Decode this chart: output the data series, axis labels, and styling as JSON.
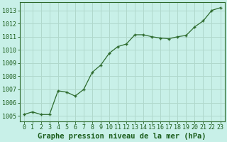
{
  "x": [
    0,
    1,
    2,
    3,
    4,
    5,
    6,
    7,
    8,
    9,
    10,
    11,
    12,
    13,
    14,
    15,
    16,
    17,
    18,
    19,
    20,
    21,
    22,
    23
  ],
  "y": [
    1005.1,
    1005.3,
    1005.1,
    1005.1,
    1006.9,
    1006.8,
    1006.5,
    1007.0,
    1008.3,
    1008.85,
    1009.75,
    1010.25,
    1010.45,
    1011.15,
    1011.15,
    1011.0,
    1010.9,
    1010.85,
    1011.0,
    1011.1,
    1011.75,
    1012.2,
    1013.0,
    1013.2
  ],
  "line_color": "#2d6a2d",
  "marker": "P",
  "marker_size": 2.5,
  "line_width": 0.9,
  "background_color": "#c8f0e8",
  "grid_color": "#b0d8cc",
  "xlabel": "Graphe pression niveau de la mer (hPa)",
  "xlabel_fontsize": 7.5,
  "xlabel_color": "#1a5c1a",
  "xlabel_bold": true,
  "ylabel_ticks": [
    1005,
    1006,
    1007,
    1008,
    1009,
    1010,
    1011,
    1012,
    1013
  ],
  "ylim": [
    1004.6,
    1013.6
  ],
  "xlim": [
    -0.5,
    23.5
  ],
  "tick_fontsize": 6.0,
  "tick_color": "#1a5c1a",
  "axis_color": "#2d6a2d"
}
